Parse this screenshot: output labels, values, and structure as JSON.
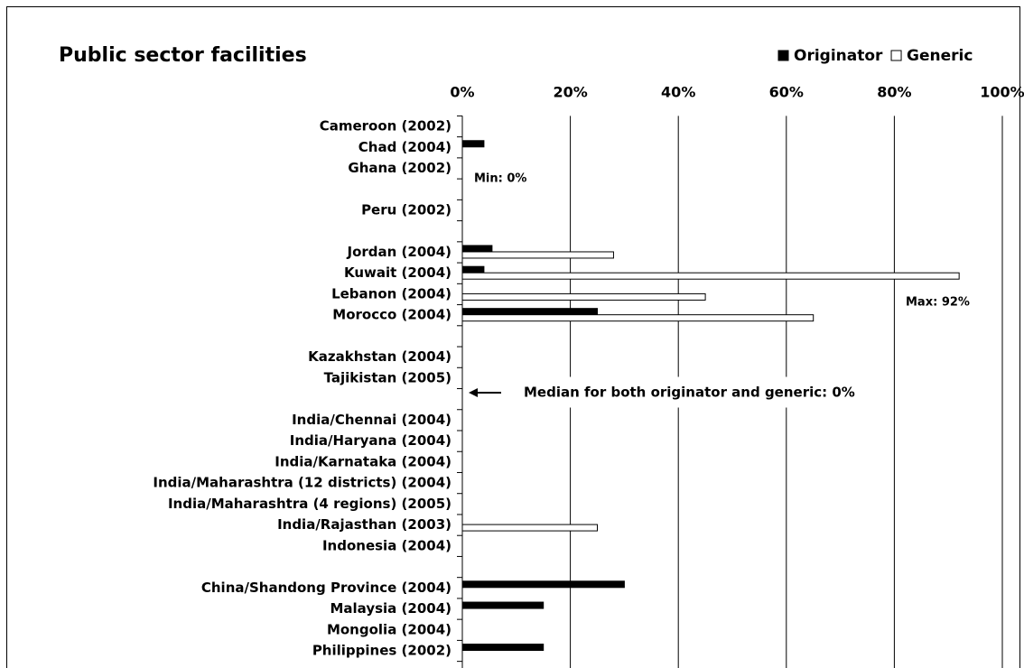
{
  "chart_data": {
    "type": "bar",
    "orientation": "horizontal",
    "title": "Public sector facilities",
    "categories": [
      "Cameroon (2002)",
      "Chad (2004)",
      "Ghana (2002)",
      null,
      "Peru (2002)",
      null,
      "Jordan (2004)",
      "Kuwait (2004)",
      "Lebanon (2004)",
      "Morocco (2004)",
      null,
      "Kazakhstan (2004)",
      "Tajikistan (2005)",
      null,
      "India/Chennai (2004)",
      "India/Haryana (2004)",
      "India/Karnataka (2004)",
      "India/Maharashtra (12 districts) (2004)",
      "India/Maharashtra (4 regions) (2005)",
      "India/Rajasthan (2003)",
      "Indonesia (2004)",
      null,
      "China/Shandong Province (2004)",
      "Malaysia (2004)",
      "Mongolia (2004)",
      "Philippines (2002)"
    ],
    "series": [
      {
        "name": "Originator",
        "color": "#000000",
        "values": [
          null,
          4,
          null,
          null,
          null,
          null,
          5.5,
          4,
          null,
          25,
          null,
          null,
          null,
          null,
          null,
          null,
          null,
          null,
          null,
          null,
          null,
          null,
          30,
          15,
          null,
          15
        ]
      },
      {
        "name": "Generic",
        "color": "#ffffff",
        "values": [
          null,
          null,
          null,
          null,
          null,
          null,
          28,
          92,
          45,
          65,
          null,
          null,
          null,
          null,
          null,
          null,
          null,
          null,
          null,
          25,
          null,
          null,
          null,
          null,
          null,
          null
        ]
      }
    ],
    "xlim": [
      0,
      100
    ],
    "xticks": [
      {
        "value": 0,
        "label": "0%"
      },
      {
        "value": 20,
        "label": "20%"
      },
      {
        "value": 40,
        "label": "40%"
      },
      {
        "value": 60,
        "label": "60%"
      },
      {
        "value": 80,
        "label": "80%"
      },
      {
        "value": 100,
        "label": "100%"
      }
    ],
    "grid": true,
    "legend": "top-right",
    "annotations": [
      "Min: 0%",
      "Max: 92%",
      "Median for both originator and generic: 0%"
    ]
  }
}
